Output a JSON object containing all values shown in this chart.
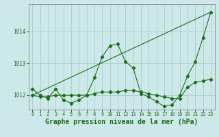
{
  "background_color": "#cce8e8",
  "grid_color": "#aacccc",
  "line_color": "#1a6e1a",
  "xlabel": "Graphe pression niveau de la mer (hPa)",
  "xlabel_fontsize": 7,
  "ylabel_ticks": [
    1012,
    1013,
    1014
  ],
  "xlim": [
    -0.5,
    23.5
  ],
  "ylim": [
    1011.55,
    1014.85
  ],
  "xticks": [
    0,
    1,
    2,
    3,
    4,
    5,
    6,
    7,
    8,
    9,
    10,
    11,
    12,
    13,
    14,
    15,
    16,
    17,
    18,
    19,
    20,
    21,
    22,
    23
  ],
  "series1_x": [
    0,
    1,
    2,
    3,
    4,
    5,
    6,
    7,
    8,
    9,
    10,
    11,
    12,
    13,
    14,
    15,
    16,
    17,
    18,
    19,
    20,
    21,
    22,
    23
  ],
  "series1_y": [
    1012.2,
    1012.0,
    1011.9,
    1012.2,
    1011.85,
    1011.75,
    1011.85,
    1012.0,
    1012.55,
    1013.2,
    1013.55,
    1013.6,
    1013.05,
    1012.85,
    1012.05,
    1011.95,
    1011.8,
    1011.65,
    1011.7,
    1012.0,
    1012.6,
    1013.05,
    1013.8,
    1014.6
  ],
  "series2_x": [
    0,
    1,
    2,
    3,
    4,
    5,
    6,
    7,
    8,
    9,
    10,
    11,
    12,
    13,
    14,
    15,
    16,
    17,
    18,
    19,
    20,
    21,
    22,
    23
  ],
  "series2_y": [
    1012.0,
    1011.95,
    1011.95,
    1012.0,
    1012.0,
    1012.0,
    1012.0,
    1012.0,
    1012.05,
    1012.1,
    1012.1,
    1012.1,
    1012.15,
    1012.15,
    1012.1,
    1012.05,
    1012.0,
    1011.95,
    1011.9,
    1011.9,
    1012.25,
    1012.4,
    1012.45,
    1012.5
  ],
  "series3_x": [
    0,
    23
  ],
  "series3_y": [
    1012.0,
    1014.6
  ]
}
